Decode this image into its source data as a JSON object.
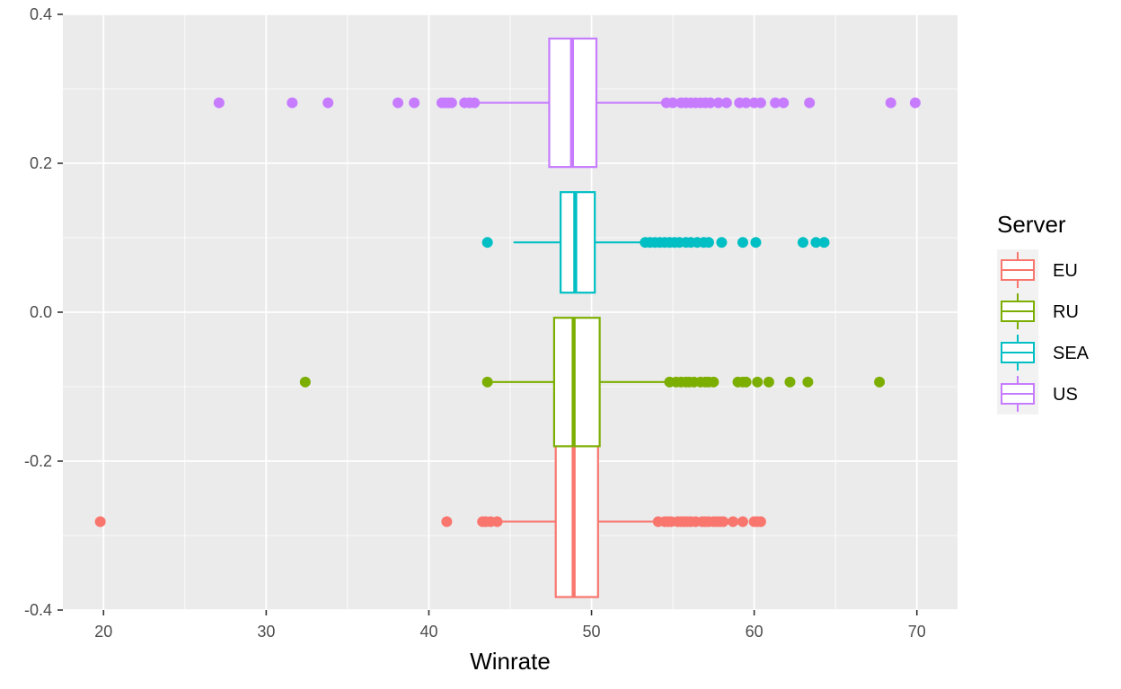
{
  "chart_data": {
    "type": "boxplot",
    "orientation": "horizontal",
    "xlabel": "Winrate",
    "ylabel": "",
    "xlim": [
      17.5,
      72.5
    ],
    "ylim": [
      -0.4,
      0.4
    ],
    "x_ticks": [
      20,
      30,
      40,
      50,
      60,
      70
    ],
    "y_ticks": [
      -0.4,
      -0.2,
      0.0,
      0.2,
      0.4
    ],
    "y_tick_labels": [
      "-0.4",
      "-0.2",
      "0.0",
      "0.2",
      "0.4"
    ],
    "grid": true,
    "legend": {
      "title": "Server",
      "position": "right"
    },
    "series": [
      {
        "name": "EU",
        "color": "#F8766D",
        "y_center": -0.28125,
        "y_box_half": 0.10125,
        "whisker_low": 44.3,
        "q1": 47.8,
        "median": 48.9,
        "q3": 50.4,
        "whisker_high": 54.0,
        "outliers": [
          19.8,
          41.1,
          43.3,
          43.5,
          43.8,
          44.2,
          54.1,
          54.5,
          54.7,
          54.9,
          55.3,
          55.5,
          55.7,
          55.9,
          56.1,
          56.4,
          56.8,
          57.0,
          57.2,
          57.5,
          57.7,
          57.9,
          58.1,
          58.7,
          59.3,
          60.0,
          60.2,
          60.4
        ]
      },
      {
        "name": "RU",
        "color": "#7CAE00",
        "y_center": -0.09375,
        "y_box_half": 0.08625,
        "whisker_low": 43.6,
        "q1": 47.7,
        "median": 48.9,
        "q3": 50.5,
        "whisker_high": 54.5,
        "outliers": [
          32.4,
          43.6,
          54.8,
          55.2,
          55.5,
          55.8,
          56.0,
          56.3,
          56.7,
          57.0,
          57.2,
          57.5,
          59.0,
          59.3,
          59.5,
          60.2,
          60.9,
          62.2,
          63.3,
          67.7
        ]
      },
      {
        "name": "SEA",
        "color": "#00BFC4",
        "y_center": 0.09375,
        "y_box_half": 0.0675,
        "whisker_low": 45.2,
        "q1": 48.1,
        "median": 49.0,
        "q3": 50.2,
        "whisker_high": 53.2,
        "outliers": [
          43.6,
          53.3,
          53.6,
          53.9,
          54.2,
          54.5,
          54.8,
          55.1,
          55.4,
          55.8,
          56.1,
          56.5,
          56.9,
          57.2,
          58.0,
          59.3,
          60.1,
          63.0,
          63.8,
          64.3
        ]
      },
      {
        "name": "US",
        "color": "#C77CFF",
        "y_center": 0.28125,
        "y_box_half": 0.08625,
        "whisker_low": 42.9,
        "q1": 47.4,
        "median": 48.8,
        "q3": 50.3,
        "whisker_high": 54.5,
        "outliers": [
          27.1,
          31.6,
          33.8,
          38.1,
          39.1,
          40.8,
          41.0,
          41.2,
          41.4,
          42.2,
          42.5,
          42.8,
          54.6,
          55.0,
          55.5,
          55.8,
          56.1,
          56.4,
          56.7,
          57.0,
          57.3,
          57.8,
          58.3,
          59.1,
          59.5,
          60.0,
          60.4,
          61.3,
          61.8,
          63.4,
          68.4,
          69.9
        ]
      }
    ]
  }
}
